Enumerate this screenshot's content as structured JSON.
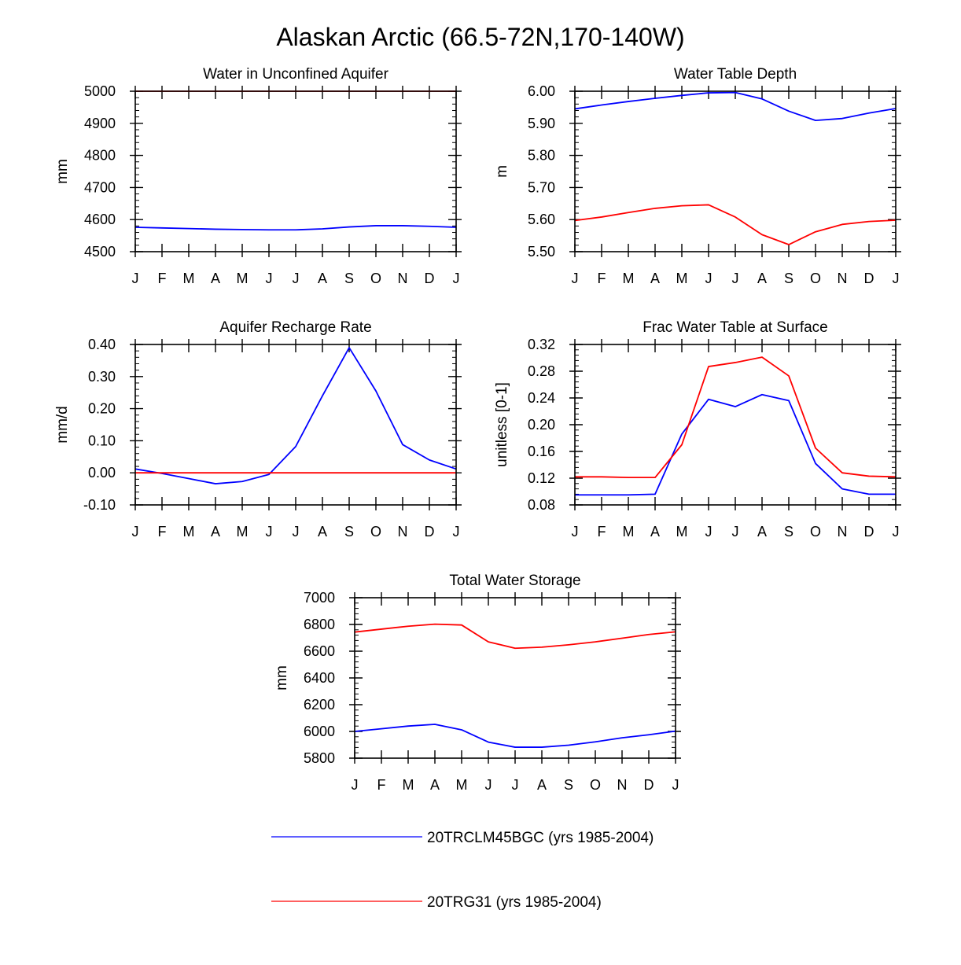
{
  "title": "Alaskan Arctic (66.5-72N,170-140W)",
  "months": [
    "J",
    "F",
    "M",
    "A",
    "M",
    "J",
    "J",
    "A",
    "S",
    "O",
    "N",
    "D",
    "J"
  ],
  "colors": {
    "blue": "#0000ff",
    "red": "#ff0000",
    "frame": "#000000"
  },
  "legend": [
    {
      "name": "20TRCLM45BGC (yrs 1985-2004)",
      "color": "#0000ff"
    },
    {
      "name": "20TRG31 (yrs 1985-2004)",
      "color": "#ff0000"
    }
  ],
  "chart_data": [
    {
      "type": "line",
      "title": "Water in Unconfined Aquifer",
      "ylabel": "mm",
      "ylim": [
        4500,
        5000
      ],
      "yticks": [
        4500,
        4600,
        4700,
        4800,
        4900,
        5000
      ],
      "ytick_labels": [
        "4500",
        "4600",
        "4700",
        "4800",
        "4900",
        "5000"
      ],
      "yminor_step": 20,
      "series": [
        {
          "name": "20TRCLM45BGC (yrs 1985-2004)",
          "color": "#0000ff",
          "values": [
            4576,
            4574,
            4572,
            4570,
            4569,
            4568,
            4568,
            4571,
            4577,
            4581,
            4581,
            4579,
            4576
          ]
        },
        {
          "name": "20TRG31 (yrs 1985-2004)",
          "color": "#ff0000",
          "values": [
            5000,
            5000,
            5000,
            5000,
            5000,
            5000,
            5000,
            5000,
            5000,
            5000,
            5000,
            5000,
            5000
          ]
        }
      ]
    },
    {
      "type": "line",
      "title": "Water Table Depth",
      "ylabel": "m",
      "ylim": [
        5.5,
        6.0
      ],
      "yticks": [
        5.5,
        5.6,
        5.7,
        5.8,
        5.9,
        6.0
      ],
      "ytick_labels": [
        "5.50",
        "5.60",
        "5.70",
        "5.80",
        "5.90",
        "6.00"
      ],
      "yminor_step": 0.02,
      "series": [
        {
          "name": "20TRCLM45BGC (yrs 1985-2004)",
          "color": "#0000ff",
          "values": [
            5.945,
            5.957,
            5.968,
            5.978,
            5.987,
            5.995,
            5.996,
            5.976,
            5.938,
            5.909,
            5.915,
            5.932,
            5.946
          ]
        },
        {
          "name": "20TRG31 (yrs 1985-2004)",
          "color": "#ff0000",
          "values": [
            5.597,
            5.608,
            5.622,
            5.635,
            5.643,
            5.646,
            5.608,
            5.553,
            5.522,
            5.562,
            5.585,
            5.594,
            5.598
          ]
        }
      ]
    },
    {
      "type": "line",
      "title": "Aquifer Recharge Rate",
      "ylabel": "mm/d",
      "ylim": [
        -0.1,
        0.4
      ],
      "yticks": [
        -0.1,
        0.0,
        0.1,
        0.2,
        0.3,
        0.4
      ],
      "ytick_labels": [
        "-0.10",
        "0.00",
        "0.10",
        "0.20",
        "0.30",
        "0.40"
      ],
      "yminor_step": 0.02,
      "series": [
        {
          "name": "20TRCLM45BGC (yrs 1985-2004)",
          "color": "#0000ff",
          "values": [
            0.012,
            -0.002,
            -0.018,
            -0.034,
            -0.027,
            -0.005,
            0.082,
            0.24,
            0.39,
            0.255,
            0.088,
            0.04,
            0.012
          ]
        },
        {
          "name": "20TRG31 (yrs 1985-2004)",
          "color": "#ff0000",
          "values": [
            0,
            0,
            0,
            0,
            0,
            0,
            0,
            0,
            0,
            0,
            0,
            0,
            0
          ]
        }
      ]
    },
    {
      "type": "line",
      "title": "Frac Water Table at Surface",
      "ylabel": "unitless [0-1]",
      "ylim": [
        0.08,
        0.32
      ],
      "yticks": [
        0.08,
        0.12,
        0.16,
        0.2,
        0.24,
        0.28,
        0.32
      ],
      "ytick_labels": [
        "0.08",
        "0.12",
        "0.16",
        "0.20",
        "0.24",
        "0.28",
        "0.32"
      ],
      "yminor_step": 0.008,
      "series": [
        {
          "name": "20TRCLM45BGC (yrs 1985-2004)",
          "color": "#0000ff",
          "values": [
            0.095,
            0.095,
            0.095,
            0.096,
            0.186,
            0.238,
            0.227,
            0.245,
            0.236,
            0.142,
            0.104,
            0.096,
            0.096
          ]
        },
        {
          "name": "20TRG31 (yrs 1985-2004)",
          "color": "#ff0000",
          "values": [
            0.122,
            0.122,
            0.121,
            0.121,
            0.17,
            0.287,
            0.293,
            0.301,
            0.273,
            0.165,
            0.128,
            0.123,
            0.122
          ]
        }
      ]
    },
    {
      "type": "line",
      "title": "Total Water Storage",
      "ylabel": "mm",
      "ylim": [
        5800,
        7000
      ],
      "yticks": [
        5800,
        6000,
        6200,
        6400,
        6600,
        6800,
        7000
      ],
      "ytick_labels": [
        "5800",
        "6000",
        "6200",
        "6400",
        "6600",
        "6800",
        "7000"
      ],
      "yminor_step": 40,
      "series": [
        {
          "name": "20TRCLM45BGC (yrs 1985-2004)",
          "color": "#0000ff",
          "values": [
            6000,
            6020,
            6040,
            6053,
            6012,
            5920,
            5882,
            5882,
            5897,
            5922,
            5952,
            5975,
            6002
          ]
        },
        {
          "name": "20TRG31 (yrs 1985-2004)",
          "color": "#ff0000",
          "values": [
            6743,
            6765,
            6787,
            6802,
            6796,
            6670,
            6622,
            6630,
            6648,
            6670,
            6697,
            6725,
            6745
          ]
        }
      ]
    }
  ]
}
